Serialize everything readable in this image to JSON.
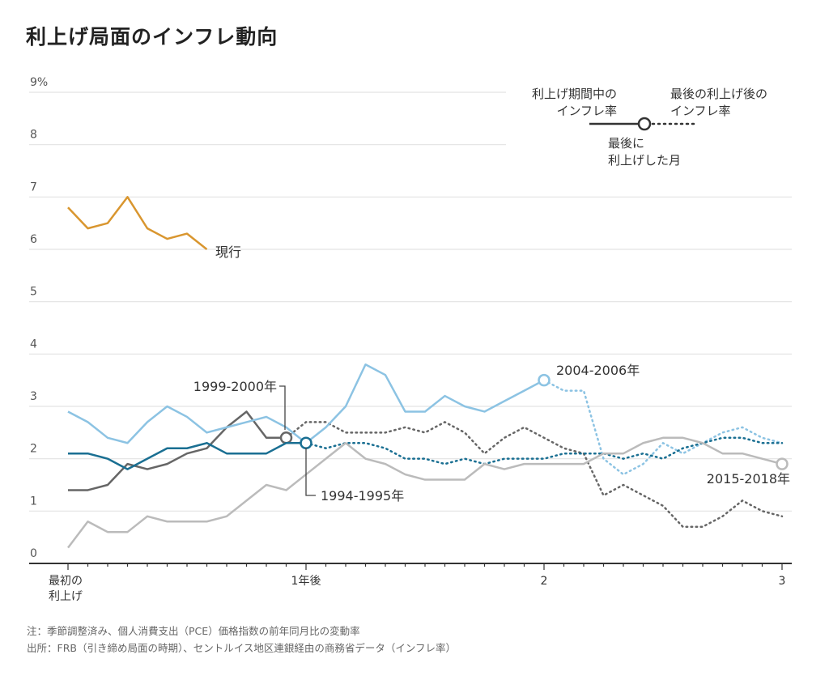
{
  "title": "利上げ局面のインフレ動向",
  "footnotes": {
    "note": "注：季節調整済み、個人消費支出（PCE）価格指数の前年同月比の変動率",
    "source": "出所：FRB（引き締め局面の時期）、セントルイス地区連銀経由の商務省データ（インフレ率）"
  },
  "legend": {
    "during_line1": "利上げ期間中の",
    "during_line2": "インフレ率",
    "after_line1": "最後の利上げ後の",
    "after_line2": "インフレ率",
    "marker_line1": "最後に",
    "marker_line2": "利上げした月"
  },
  "chart_data": {
    "type": "line",
    "title": "利上げ局面のインフレ動向",
    "xlabel": "",
    "ylabel": "%",
    "x_unit": "months since first rate hike",
    "xlim": [
      0,
      36
    ],
    "ylim": [
      0,
      9
    ],
    "y_ticks": [
      {
        "value": 0,
        "label": "0"
      },
      {
        "value": 1,
        "label": "1"
      },
      {
        "value": 2,
        "label": "2"
      },
      {
        "value": 3,
        "label": "3"
      },
      {
        "value": 4,
        "label": "4"
      },
      {
        "value": 5,
        "label": "5"
      },
      {
        "value": 6,
        "label": "6"
      },
      {
        "value": 7,
        "label": "7"
      },
      {
        "value": 8,
        "label": "8"
      },
      {
        "value": 9,
        "label": "9%"
      }
    ],
    "x_ticks": [
      {
        "value": 0,
        "label_line1": "最初の",
        "label_line2": "利上げ"
      },
      {
        "value": 12,
        "label_line1": "1年後",
        "label_line2": ""
      },
      {
        "value": 24,
        "label_line1": "2",
        "label_line2": ""
      },
      {
        "value": 36,
        "label_line1": "3",
        "label_line2": ""
      }
    ],
    "grid": true,
    "series": [
      {
        "name": "現行",
        "color": "#d9962f",
        "last_hike_month": null,
        "values": [
          6.8,
          6.4,
          6.5,
          7.0,
          6.4,
          6.2,
          6.3,
          6.0
        ]
      },
      {
        "name": "2004-2006年",
        "color": "#8cc3e3",
        "last_hike_month": 24,
        "values": [
          2.9,
          2.7,
          2.4,
          2.3,
          2.7,
          3.0,
          2.8,
          2.5,
          2.6,
          2.7,
          2.8,
          2.6,
          2.3,
          2.6,
          3.0,
          3.8,
          3.6,
          2.9,
          2.9,
          3.2,
          3.0,
          2.9,
          3.1,
          3.3,
          3.5,
          3.3,
          3.3,
          2.0,
          1.7,
          1.9,
          2.3,
          2.1,
          2.3,
          2.5,
          2.6,
          2.4,
          2.3
        ]
      },
      {
        "name": "1994-1995年",
        "color": "#1a6f92",
        "last_hike_month": 12,
        "values": [
          2.1,
          2.1,
          2.0,
          1.8,
          2.0,
          2.2,
          2.2,
          2.3,
          2.1,
          2.1,
          2.1,
          2.3,
          2.3,
          2.2,
          2.3,
          2.3,
          2.2,
          2.0,
          2.0,
          1.9,
          2.0,
          1.9,
          2.0,
          2.0,
          2.0,
          2.1,
          2.1,
          2.1,
          2.0,
          2.1,
          2.0,
          2.2,
          2.3,
          2.4,
          2.4,
          2.3,
          2.3
        ]
      },
      {
        "name": "1999-2000年",
        "color": "#666666",
        "last_hike_month": 11,
        "values": [
          1.4,
          1.4,
          1.5,
          1.9,
          1.8,
          1.9,
          2.1,
          2.2,
          2.6,
          2.9,
          2.4,
          2.4,
          2.7,
          2.7,
          2.5,
          2.5,
          2.5,
          2.6,
          2.5,
          2.7,
          2.5,
          2.1,
          2.4,
          2.6,
          2.4,
          2.2,
          2.1,
          1.3,
          1.5,
          1.3,
          1.1,
          0.7,
          0.7,
          0.9,
          1.2,
          1.0,
          0.9
        ]
      },
      {
        "name": "2015-2018年",
        "color": "#bbbbbb",
        "last_hike_month": 36,
        "values": [
          0.3,
          0.8,
          0.6,
          0.6,
          0.9,
          0.8,
          0.8,
          0.8,
          0.9,
          1.2,
          1.5,
          1.4,
          1.7,
          2.0,
          2.3,
          2.0,
          1.9,
          1.7,
          1.6,
          1.6,
          1.6,
          1.9,
          1.8,
          1.9,
          1.9,
          1.9,
          1.9,
          2.1,
          2.1,
          2.3,
          2.4,
          2.4,
          2.3,
          2.1,
          2.1,
          2.0,
          1.9
        ]
      }
    ],
    "annotations": [
      {
        "text": "現行",
        "series": "現行"
      },
      {
        "text": "2004-2006年",
        "series": "2004-2006年"
      },
      {
        "text": "1999-2000年",
        "series": "1999-2000年"
      },
      {
        "text": "1994-1995年",
        "series": "1994-1995年"
      },
      {
        "text": "2015-2018年",
        "series": "2015-2018年"
      }
    ]
  }
}
